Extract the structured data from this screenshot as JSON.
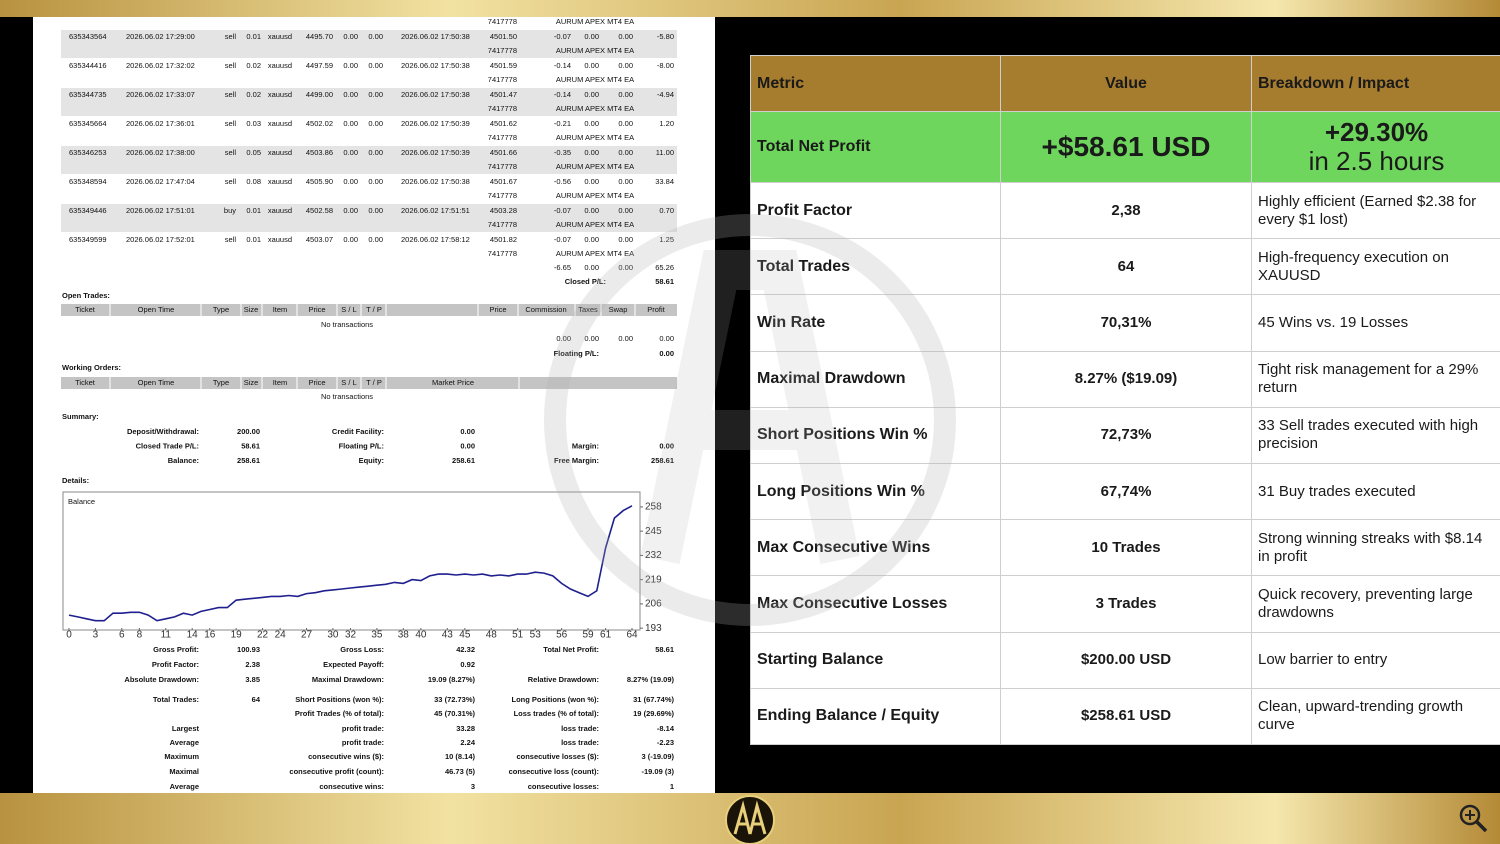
{
  "report": {
    "top_row": {
      "magic": "7417778",
      "comment": "AURUM APEX MT4 EA"
    },
    "trades": [
      {
        "ticket": "635343564",
        "open_time": "2026.06.02 17:29:00",
        "type": "sell",
        "size": "0.01",
        "item": "xauusd",
        "price": "4495.70",
        "sl": "0.00",
        "tp": "0.00",
        "close_time": "2026.06.02 17:50:38",
        "close_price": "4501.50",
        "commission": "-0.07",
        "taxes": "0.00",
        "swap": "0.00",
        "profit": "-5.80",
        "magic": "7417778",
        "comment": "AURUM APEX MT4 EA"
      },
      {
        "ticket": "635344416",
        "open_time": "2026.06.02 17:32:02",
        "type": "sell",
        "size": "0.02",
        "item": "xauusd",
        "price": "4497.59",
        "sl": "0.00",
        "tp": "0.00",
        "close_time": "2026.06.02 17:50:38",
        "close_price": "4501.59",
        "commission": "-0.14",
        "taxes": "0.00",
        "swap": "0.00",
        "profit": "-8.00",
        "magic": "7417778",
        "comment": "AURUM APEX MT4 EA"
      },
      {
        "ticket": "635344735",
        "open_time": "2026.06.02 17:33:07",
        "type": "sell",
        "size": "0.02",
        "item": "xauusd",
        "price": "4499.00",
        "sl": "0.00",
        "tp": "0.00",
        "close_time": "2026.06.02 17:50:38",
        "close_price": "4501.47",
        "commission": "-0.14",
        "taxes": "0.00",
        "swap": "0.00",
        "profit": "-4.94",
        "magic": "7417778",
        "comment": "AURUM APEX MT4 EA"
      },
      {
        "ticket": "635345664",
        "open_time": "2026.06.02 17:36:01",
        "type": "sell",
        "size": "0.03",
        "item": "xauusd",
        "price": "4502.02",
        "sl": "0.00",
        "tp": "0.00",
        "close_time": "2026.06.02 17:50:39",
        "close_price": "4501.62",
        "commission": "-0.21",
        "taxes": "0.00",
        "swap": "0.00",
        "profit": "1.20",
        "magic": "7417778",
        "comment": "AURUM APEX MT4 EA"
      },
      {
        "ticket": "635346253",
        "open_time": "2026.06.02 17:38:00",
        "type": "sell",
        "size": "0.05",
        "item": "xauusd",
        "price": "4503.86",
        "sl": "0.00",
        "tp": "0.00",
        "close_time": "2026.06.02 17:50:39",
        "close_price": "4501.66",
        "commission": "-0.35",
        "taxes": "0.00",
        "swap": "0.00",
        "profit": "11.00",
        "magic": "7417778",
        "comment": "AURUM APEX MT4 EA"
      },
      {
        "ticket": "635348594",
        "open_time": "2026.06.02 17:47:04",
        "type": "sell",
        "size": "0.08",
        "item": "xauusd",
        "price": "4505.90",
        "sl": "0.00",
        "tp": "0.00",
        "close_time": "2026.06.02 17:50:38",
        "close_price": "4501.67",
        "commission": "-0.56",
        "taxes": "0.00",
        "swap": "0.00",
        "profit": "33.84",
        "magic": "7417778",
        "comment": "AURUM APEX MT4 EA"
      },
      {
        "ticket": "635349446",
        "open_time": "2026.06.02 17:51:01",
        "type": "buy",
        "size": "0.01",
        "item": "xauusd",
        "price": "4502.58",
        "sl": "0.00",
        "tp": "0.00",
        "close_time": "2026.06.02 17:51:51",
        "close_price": "4503.28",
        "commission": "-0.07",
        "taxes": "0.00",
        "swap": "0.00",
        "profit": "0.70",
        "magic": "7417778",
        "comment": "AURUM APEX MT4 EA"
      },
      {
        "ticket": "635349599",
        "open_time": "2026.06.02 17:52:01",
        "type": "sell",
        "size": "0.01",
        "item": "xauusd",
        "price": "4503.07",
        "sl": "0.00",
        "tp": "0.00",
        "close_time": "2026.06.02 17:58:12",
        "close_price": "4501.82",
        "commission": "-0.07",
        "taxes": "0.00",
        "swap": "0.00",
        "profit": "1.25",
        "magic": "7417778",
        "comment": "AURUM APEX MT4 EA"
      }
    ],
    "totals": {
      "commission": "-6.65",
      "taxes": "0.00",
      "swap": "0.00",
      "profit": "65.26",
      "closed_label": "Closed P/L:",
      "closed_value": "58.61"
    },
    "open_trades": {
      "title": "Open Trades:",
      "headers": [
        "Ticket",
        "Open Time",
        "Type",
        "Size",
        "Item",
        "Price",
        "S / L",
        "T / P",
        "Price",
        "Commission",
        "Taxes",
        "Swap",
        "Profit"
      ],
      "empty": "No transactions",
      "totals": [
        "0.00",
        "0.00",
        "0.00",
        "0.00"
      ],
      "floating_label": "Floating P/L:",
      "floating_value": "0.00"
    },
    "working_orders": {
      "title": "Working Orders:",
      "headers": [
        "Ticket",
        "Open Time",
        "Type",
        "Size",
        "Item",
        "Price",
        "S / L",
        "T / P",
        "Market Price"
      ],
      "empty": "No transactions"
    },
    "summary_title": "Summary:",
    "summary": [
      [
        {
          "label": "Deposit/Withdrawal:",
          "value": "200.00"
        },
        {
          "label": "Credit Facility:",
          "value": "0.00"
        }
      ],
      [
        {
          "label": "Closed Trade P/L:",
          "value": "58.61"
        },
        {
          "label": "Floating P/L:",
          "value": "0.00"
        },
        {
          "label": "Margin:",
          "value": "0.00"
        }
      ],
      [
        {
          "label": "Balance:",
          "value": "258.61"
        },
        {
          "label": "Equity:",
          "value": "258.61"
        },
        {
          "label": "Free Margin:",
          "value": "258.61"
        }
      ]
    ],
    "details_title": "Details:",
    "stats": [
      [
        {
          "label": "Gross Profit:",
          "value": "100.93"
        },
        {
          "label": "Gross Loss:",
          "value": "42.32"
        },
        {
          "label": "Total Net Profit:",
          "value": "58.61"
        }
      ],
      [
        {
          "label": "Profit Factor:",
          "value": "2.38"
        },
        {
          "label": "Expected Payoff:",
          "value": "0.92"
        }
      ],
      [
        {
          "label": "Absolute Drawdown:",
          "value": "3.85"
        },
        {
          "label": "Maximal Drawdown:",
          "value": "19.09 (8.27%)"
        },
        {
          "label": "Relative Drawdown:",
          "value": "8.27% (19.09)"
        }
      ],
      [
        {
          "label": "Total Trades:",
          "value": "64"
        },
        {
          "label": "Short Positions (won %):",
          "value": "33 (72.73%)"
        },
        {
          "label": "Long Positions (won %):",
          "value": "31 (67.74%)"
        }
      ],
      [
        null,
        {
          "label": "Profit Trades (% of total):",
          "value": "45 (70.31%)"
        },
        {
          "label": "Loss trades (% of total):",
          "value": "19 (29.69%)"
        }
      ],
      [
        {
          "label": "Largest"
        },
        {
          "label": "profit trade:",
          "value": "33.28"
        },
        {
          "label": "loss trade:",
          "value": "-8.14"
        }
      ],
      [
        {
          "label": "Average"
        },
        {
          "label": "profit trade:",
          "value": "2.24"
        },
        {
          "label": "loss trade:",
          "value": "-2.23"
        }
      ],
      [
        {
          "label": "Maximum"
        },
        {
          "label": "consecutive wins ($):",
          "value": "10 (8.14)"
        },
        {
          "label": "consecutive losses ($):",
          "value": "3 (-19.09)"
        }
      ],
      [
        {
          "label": "Maximal"
        },
        {
          "label": "consecutive profit (count):",
          "value": "46.73 (5)"
        },
        {
          "label": "consecutive loss (count):",
          "value": "-19.09 (3)"
        }
      ],
      [
        {
          "label": "Average"
        },
        {
          "label": "consecutive wins:",
          "value": "3"
        },
        {
          "label": "consecutive losses:",
          "value": "1"
        }
      ]
    ]
  },
  "chart_data": {
    "type": "line",
    "label": "Balance",
    "color": "#1f1f8f",
    "x": [
      0,
      1,
      2,
      3,
      4,
      5,
      6,
      7,
      8,
      9,
      10,
      11,
      12,
      13,
      14,
      15,
      16,
      17,
      18,
      19,
      20,
      21,
      22,
      23,
      24,
      25,
      26,
      27,
      28,
      29,
      30,
      31,
      32,
      33,
      34,
      35,
      36,
      37,
      38,
      39,
      40,
      41,
      42,
      43,
      44,
      45,
      46,
      47,
      48,
      49,
      50,
      51,
      52,
      53,
      54,
      55,
      56,
      57,
      58,
      59,
      60,
      61,
      62,
      63,
      64
    ],
    "values": [
      200,
      199,
      198,
      197,
      197,
      201,
      201,
      201.5,
      201.5,
      200,
      197,
      198,
      199,
      201,
      200,
      202,
      203,
      204,
      204,
      208,
      208.5,
      209,
      209.5,
      210,
      210,
      210.5,
      210,
      211.5,
      212,
      213,
      213.5,
      214,
      214.5,
      215,
      215.5,
      216,
      216.5,
      217.5,
      217,
      219,
      218.5,
      221,
      222,
      222,
      221.5,
      222,
      221.5,
      222,
      221,
      221.5,
      221,
      222,
      222,
      223,
      222.5,
      221,
      217,
      214,
      212,
      210,
      213,
      236,
      252,
      256,
      258.61
    ],
    "xlim": [
      0,
      64
    ],
    "ylim": [
      192,
      266
    ],
    "xticks": [
      0,
      3,
      6,
      8,
      11,
      14,
      16,
      19,
      22,
      24,
      27,
      30,
      32,
      35,
      38,
      40,
      43,
      45,
      48,
      51,
      53,
      56,
      59,
      61,
      64
    ],
    "yticks": [
      258,
      245,
      232,
      219,
      206,
      193
    ]
  },
  "metrics_table": {
    "headers": [
      "Metric",
      "Value",
      "Breakdown / Impact"
    ],
    "highlight": {
      "metric": "Total Net Profit",
      "value": "+$58.61 USD",
      "impact": "+29.30%",
      "impact_note": "in 2.5 hours"
    },
    "rows": [
      {
        "metric": "Profit Factor",
        "value": "2,38",
        "impact": "Highly efficient (Earned $2.38 for every $1 lost)"
      },
      {
        "metric": "Total Trades",
        "value": "64",
        "impact": "High-frequency execution on XAUUSD"
      },
      {
        "metric": "Win Rate",
        "value": "70,31%",
        "impact": "45 Wins vs. 19 Losses"
      },
      {
        "metric": "Maximal Drawdown",
        "value": "8.27% ($19.09)",
        "impact": "Tight risk management for a 29% return"
      },
      {
        "metric": "Short Positions Win %",
        "value": "72,73%",
        "impact": "33 Sell trades executed with high precision"
      },
      {
        "metric": "Long Positions Win %",
        "value": "67,74%",
        "impact": "31 Buy trades executed"
      },
      {
        "metric": "Max Consecutive Wins",
        "value": "10 Trades",
        "impact": "Strong winning streaks with $8.14 in profit"
      },
      {
        "metric": "Max Consecutive Losses",
        "value": "3 Trades",
        "impact": "Quick recovery, preventing large drawdowns"
      },
      {
        "metric": "Starting Balance",
        "value": "$200.00 USD",
        "impact": "Low barrier to entry"
      },
      {
        "metric": "Ending Balance / Equity",
        "value": "$258.61 USD",
        "impact": "Clean, upward-trending growth curve"
      }
    ]
  }
}
